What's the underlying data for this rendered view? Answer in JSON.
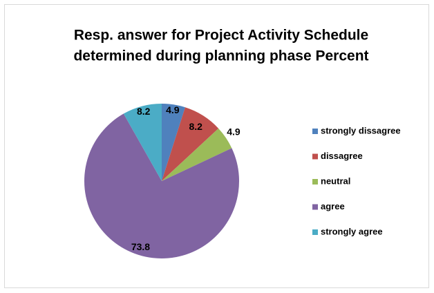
{
  "chart_data": {
    "type": "pie",
    "title": [
      "Resp. answer for Project Activity Schedule",
      "determined during planning phase Percent"
    ],
    "categories": [
      "strongly dissagree",
      "dissagree",
      "neutral",
      "agree",
      "strongly agree"
    ],
    "values": [
      4.9,
      8.2,
      4.9,
      73.8,
      8.2
    ],
    "colors": [
      "#4f81bd",
      "#c0504d",
      "#9bbb59",
      "#8064a2",
      "#4bacc6"
    ],
    "legend": "right"
  }
}
